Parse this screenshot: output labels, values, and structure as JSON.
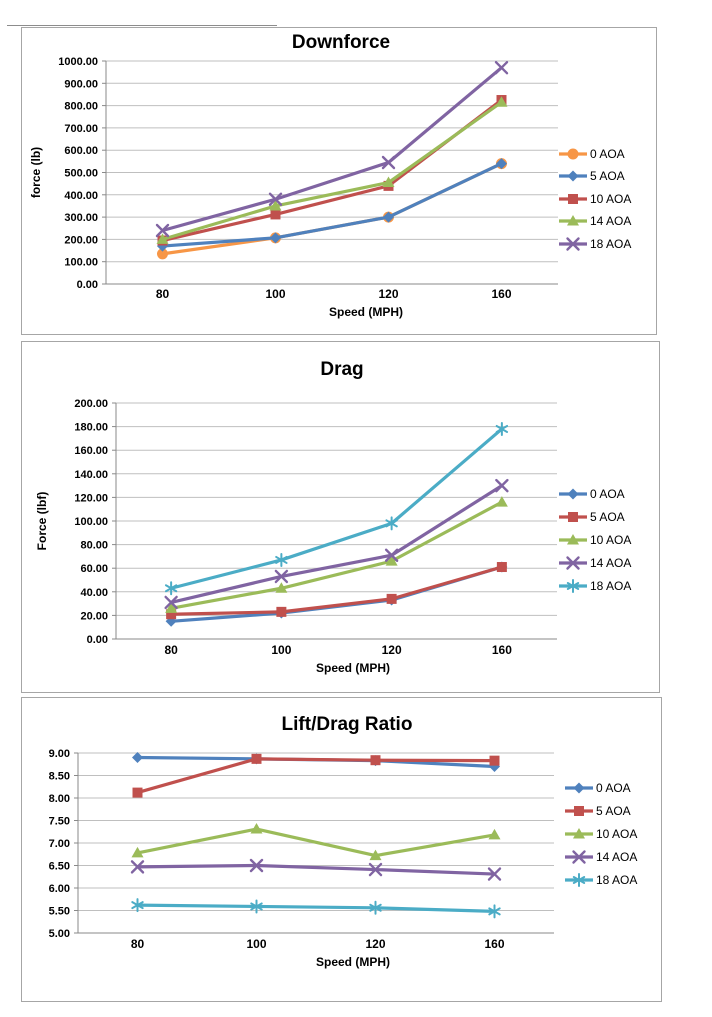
{
  "chart_data": [
    {
      "type": "line",
      "title": "Downforce",
      "xlabel": "Speed (MPH)",
      "ylabel": "force (lb)",
      "categories": [
        "80",
        "100",
        "120",
        "160"
      ],
      "ylim": [
        0,
        1000
      ],
      "ytick_step": 100,
      "yticks": [
        "1000.00",
        "900.00",
        "800.00",
        "700.00",
        "600.00",
        "500.00",
        "400.00",
        "300.00",
        "200.00",
        "100.00",
        "0.00"
      ],
      "grid": true,
      "legend_position": "right",
      "legend": [
        "0 AOA",
        "5 AOA",
        "10 AOA",
        "14 AOA",
        "18 AOA"
      ],
      "series": [
        {
          "name": "0 AOA",
          "color": "#F79646",
          "marker": "circle",
          "values": [
            135,
            207,
            300,
            540
          ]
        },
        {
          "name": "5 AOA",
          "color": "#4F81BD",
          "marker": "diamond",
          "values": [
            170,
            207,
            300,
            540
          ]
        },
        {
          "name": "10 AOA",
          "color": "#C0504D",
          "marker": "square",
          "values": [
            195,
            312,
            440,
            825
          ]
        },
        {
          "name": "14 AOA",
          "color": "#9BBB59",
          "marker": "triangle",
          "values": [
            200,
            350,
            455,
            815
          ]
        },
        {
          "name": "18 AOA",
          "color": "#8064A2",
          "marker": "x",
          "values": [
            240,
            380,
            545,
            970
          ]
        }
      ]
    },
    {
      "type": "line",
      "title": "Drag",
      "xlabel": "Speed (MPH)",
      "ylabel": "Force (lbf)",
      "categories": [
        "80",
        "100",
        "120",
        "160"
      ],
      "ylim": [
        0,
        200
      ],
      "ytick_step": 20,
      "yticks": [
        "200.00",
        "180.00",
        "160.00",
        "140.00",
        "120.00",
        "100.00",
        "80.00",
        "60.00",
        "40.00",
        "20.00",
        "0.00"
      ],
      "grid": true,
      "legend_position": "right",
      "legend": [
        "0 AOA",
        "5 AOA",
        "10 AOA",
        "14 AOA",
        "18 AOA"
      ],
      "series": [
        {
          "name": "0 AOA",
          "color": "#4F81BD",
          "marker": "diamond",
          "values": [
            15,
            22,
            33,
            61
          ]
        },
        {
          "name": "5 AOA",
          "color": "#C0504D",
          "marker": "square",
          "values": [
            21,
            23,
            34,
            61
          ]
        },
        {
          "name": "10 AOA",
          "color": "#9BBB59",
          "marker": "triangle",
          "values": [
            26,
            43,
            66,
            116
          ]
        },
        {
          "name": "14 AOA",
          "color": "#8064A2",
          "marker": "x",
          "values": [
            31,
            53,
            71,
            130
          ]
        },
        {
          "name": "18 AOA",
          "color": "#4BACC6",
          "marker": "star",
          "values": [
            43,
            67,
            98,
            178
          ]
        }
      ]
    },
    {
      "type": "line",
      "title": "Lift/Drag Ratio",
      "xlabel": "Speed (MPH)",
      "ylabel": "",
      "categories": [
        "80",
        "100",
        "120",
        "160"
      ],
      "ylim": [
        5,
        9
      ],
      "ytick_step": 0.5,
      "yticks": [
        "9.00",
        "8.50",
        "8.00",
        "7.50",
        "7.00",
        "6.50",
        "6.00",
        "5.50",
        "5.00"
      ],
      "grid": true,
      "legend_position": "right",
      "legend": [
        "0 AOA",
        "5 AOA",
        "10 AOA",
        "14 AOA",
        "18 AOA"
      ],
      "series": [
        {
          "name": "0 AOA",
          "color": "#4F81BD",
          "marker": "diamond",
          "values": [
            8.9,
            8.87,
            8.83,
            8.7
          ]
        },
        {
          "name": "5 AOA",
          "color": "#C0504D",
          "marker": "square",
          "values": [
            8.12,
            8.87,
            8.84,
            8.83
          ]
        },
        {
          "name": "10 AOA",
          "color": "#9BBB59",
          "marker": "triangle",
          "values": [
            6.78,
            7.31,
            6.72,
            7.18
          ]
        },
        {
          "name": "14 AOA",
          "color": "#8064A2",
          "marker": "x",
          "values": [
            6.47,
            6.5,
            6.41,
            6.31
          ]
        },
        {
          "name": "18 AOA",
          "color": "#4BACC6",
          "marker": "star",
          "values": [
            5.62,
            5.59,
            5.56,
            5.48
          ]
        }
      ]
    }
  ],
  "colors": {
    "gridline": "#bfbfbf",
    "axis": "#898989",
    "frame_border": "#a6a6a6",
    "text": "#000000"
  }
}
